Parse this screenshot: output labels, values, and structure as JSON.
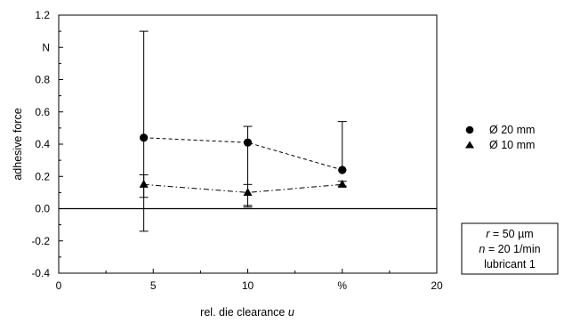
{
  "chart_data": {
    "type": "scatter",
    "title": "",
    "xlabel": "rel. die clearance",
    "xlabel_var": "u",
    "ylabel": "adhesive force",
    "xlim": [
      0,
      20
    ],
    "ylim": [
      -0.4,
      1.2
    ],
    "x_ticks": [
      {
        "value": 0,
        "label": "0"
      },
      {
        "value": 5,
        "label": "5"
      },
      {
        "value": 10,
        "label": "10"
      },
      {
        "value": 15,
        "label": "%"
      },
      {
        "value": 20,
        "label": "20"
      }
    ],
    "y_ticks": [
      {
        "value": 1.2,
        "label": "1.2"
      },
      {
        "value": 1.0,
        "label": "N"
      },
      {
        "value": 0.8,
        "label": "0.8"
      },
      {
        "value": 0.6,
        "label": "0.6"
      },
      {
        "value": 0.4,
        "label": "0.4"
      },
      {
        "value": 0.2,
        "label": "0.2"
      },
      {
        "value": 0.0,
        "label": "0.0"
      },
      {
        "value": -0.2,
        "label": "-0.2"
      },
      {
        "value": -0.4,
        "label": "-0.4"
      }
    ],
    "zero_line": true,
    "grid": false,
    "legend_position": "right",
    "series": [
      {
        "name": "Ø 20 mm",
        "marker": "circle",
        "line": "dashed",
        "points": [
          {
            "x": 4.5,
            "y": 0.44,
            "err_low": -0.14,
            "err_high": 1.1
          },
          {
            "x": 10,
            "y": 0.41,
            "err_low": 0.01,
            "err_high": 0.51
          },
          {
            "x": 15,
            "y": 0.24,
            "err_low": 0.24,
            "err_high": 0.54
          }
        ]
      },
      {
        "name": "Ø 10 mm",
        "marker": "triangle",
        "line": "dashdot",
        "points": [
          {
            "x": 4.5,
            "y": 0.15,
            "err_low": 0.07,
            "err_high": 0.21
          },
          {
            "x": 10,
            "y": 0.1,
            "err_low": 0.02,
            "err_high": 0.15
          },
          {
            "x": 15,
            "y": 0.15,
            "err_low": 0.14,
            "err_high": 0.17
          }
        ]
      }
    ],
    "annotation": {
      "lines": [
        {
          "var": "r",
          "text": " = 50 µm"
        },
        {
          "var": "n",
          "text": " = 20 1/min"
        },
        {
          "var": "",
          "text": "lubricant 1"
        }
      ]
    },
    "colors": {
      "ink": "#000000",
      "background": "#ffffff"
    }
  }
}
